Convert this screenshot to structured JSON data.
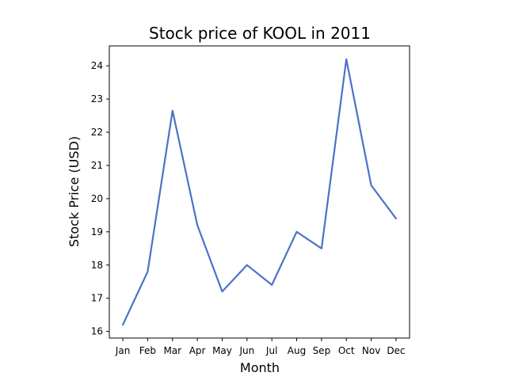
{
  "chart_data": {
    "type": "line",
    "title": "Stock price of KOOL in 2011",
    "xlabel": "Month",
    "ylabel": "Stock Price (USD)",
    "categories": [
      "Jan",
      "Feb",
      "Mar",
      "Apr",
      "May",
      "Jun",
      "Jul",
      "Aug",
      "Sep",
      "Oct",
      "Nov",
      "Dec"
    ],
    "series": [
      {
        "values": [
          16.2,
          17.8,
          22.65,
          19.2,
          17.2,
          18.0,
          17.4,
          19.0,
          18.5,
          24.2,
          20.4,
          19.4
        ]
      }
    ],
    "ylim": [
      15.8,
      24.6
    ],
    "yticks": [
      16,
      17,
      18,
      19,
      20,
      21,
      22,
      23,
      24
    ],
    "grid": false,
    "legend": "none",
    "line_color": "#4c72c8"
  }
}
